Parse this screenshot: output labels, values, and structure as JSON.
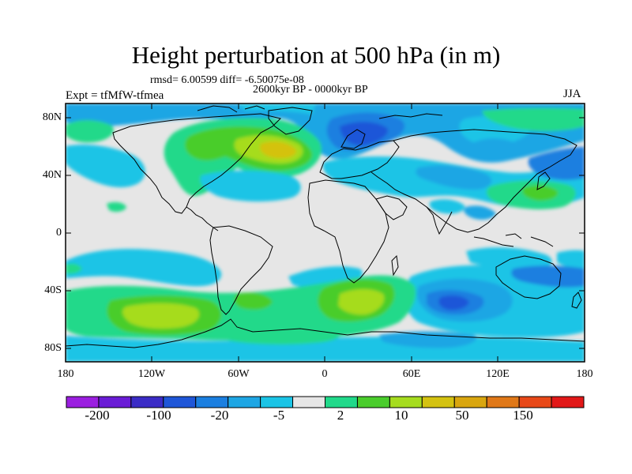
{
  "title": "Height perturbation at 500 hPa (in m)",
  "stats_line": "rmsd= 6.00599 diff= -6.50075e-08",
  "period": "2600kyr BP - 0000kyr BP",
  "experiment": "Expt = tfMfW-tfmea",
  "season": "JJA",
  "lat_ticks": [
    "80N",
    "40N",
    "0",
    "40S",
    "80S"
  ],
  "lon_ticks": [
    "180",
    "120W",
    "60W",
    "0",
    "60E",
    "120E",
    "180"
  ],
  "colorbar": {
    "colors": [
      "#9b1fe0",
      "#6a1cd6",
      "#3b2cc6",
      "#1f56d8",
      "#1b7fe0",
      "#1ea6e4",
      "#1bc4e6",
      "#e6e6e6",
      "#21d98a",
      "#4acd2c",
      "#a6dc1f",
      "#d4c211",
      "#d9a60f",
      "#e07818",
      "#e84818",
      "#e21818"
    ],
    "labels": [
      "-200",
      "-100",
      "-20",
      "-5",
      "2",
      "10",
      "50",
      "150"
    ]
  }
}
